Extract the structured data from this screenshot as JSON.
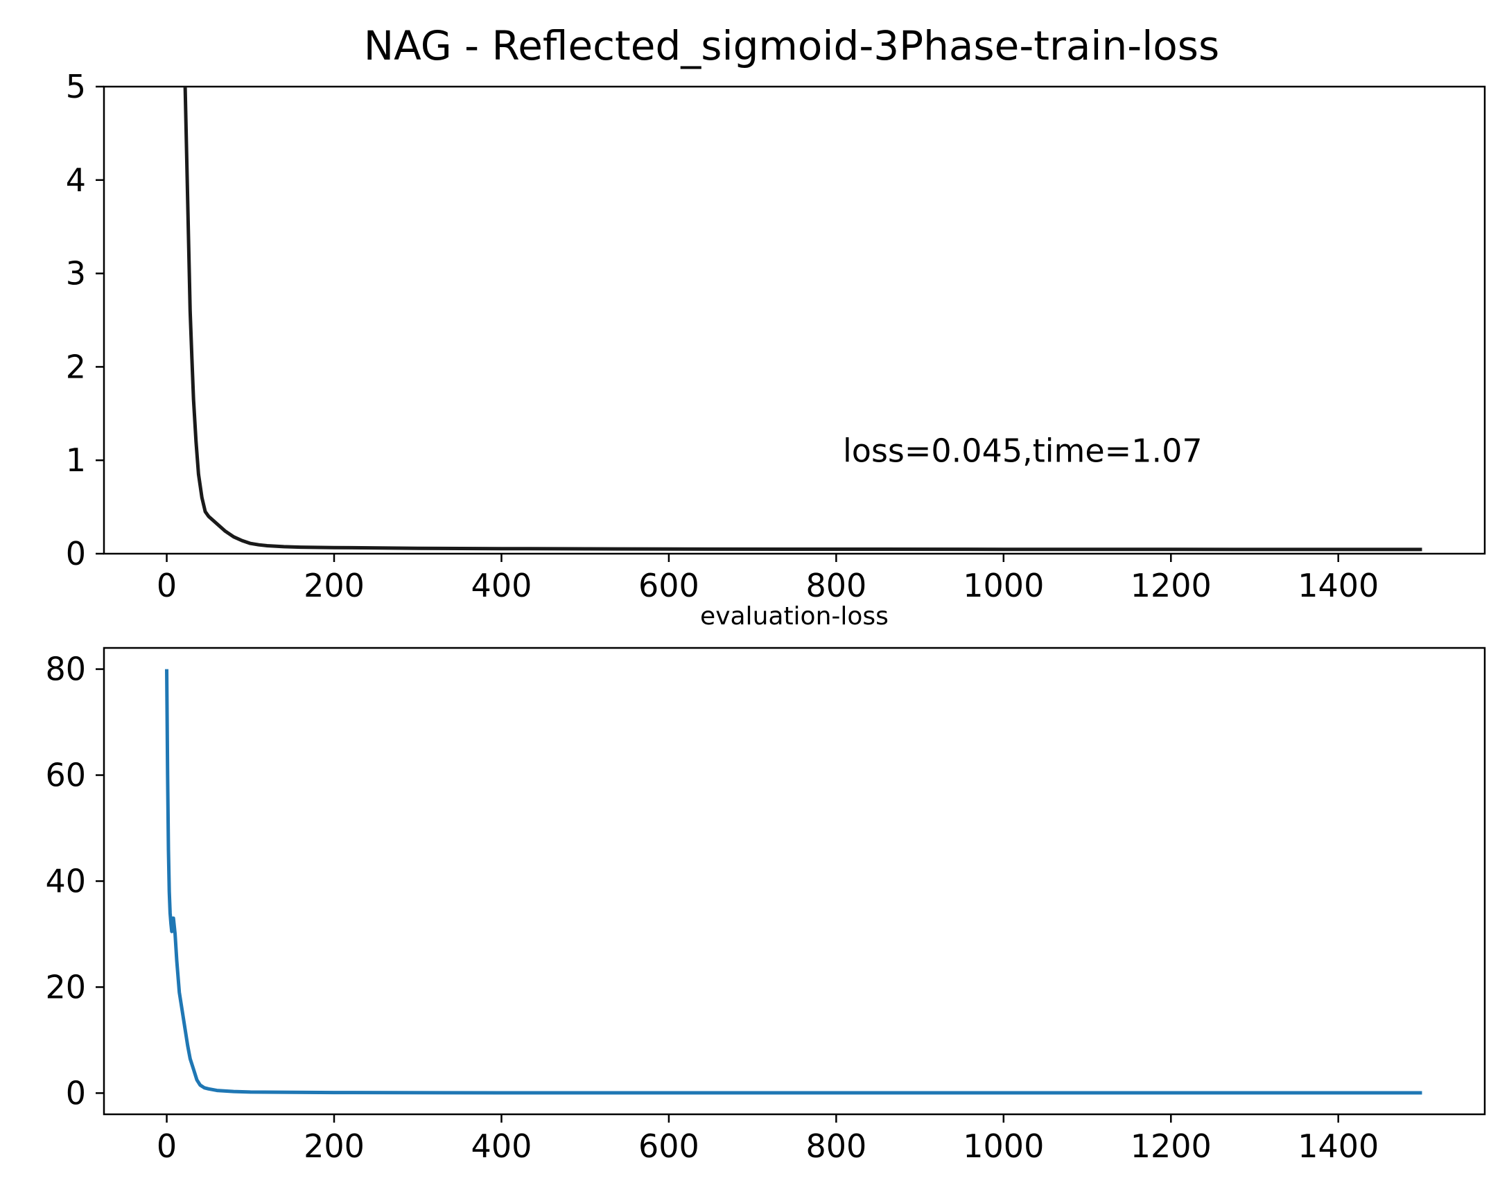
{
  "figure_title": "NAG - Reflected_sigmoid-3Phase-train-loss",
  "chart_data": [
    {
      "type": "line",
      "id": "train",
      "title": "NAG - Reflected_sigmoid-3Phase-train-loss",
      "xlabel": "",
      "ylabel": "",
      "xlim": [
        -75,
        1575
      ],
      "ylim": [
        0,
        5
      ],
      "xticks": [
        0,
        200,
        400,
        600,
        800,
        1000,
        1200,
        1400
      ],
      "yticks": [
        0,
        1,
        2,
        3,
        4,
        5
      ],
      "grid": false,
      "annotation": {
        "text": "loss=0.045,time=1.07",
        "x": 808,
        "y": 1.1
      },
      "series": [
        {
          "name": "train-loss",
          "color": "#1a1a1a",
          "x": [
            22,
            25,
            28,
            30,
            32,
            35,
            38,
            42,
            46,
            50,
            60,
            70,
            80,
            90,
            100,
            110,
            120,
            140,
            160,
            200,
            300,
            400,
            600,
            800,
            1000,
            1200,
            1400,
            1500
          ],
          "y": [
            5.0,
            3.8,
            2.6,
            2.1,
            1.65,
            1.2,
            0.85,
            0.6,
            0.45,
            0.4,
            0.32,
            0.24,
            0.18,
            0.14,
            0.11,
            0.095,
            0.085,
            0.075,
            0.07,
            0.065,
            0.058,
            0.054,
            0.05,
            0.048,
            0.047,
            0.046,
            0.045,
            0.045
          ]
        }
      ]
    },
    {
      "type": "line",
      "id": "eval",
      "title": "evaluation-loss",
      "xlabel": "",
      "ylabel": "",
      "xlim": [
        -75,
        1575
      ],
      "ylim": [
        -4,
        84
      ],
      "xticks": [
        0,
        200,
        400,
        600,
        800,
        1000,
        1200,
        1400
      ],
      "yticks": [
        0,
        20,
        40,
        60,
        80
      ],
      "grid": false,
      "series": [
        {
          "name": "evaluation-loss",
          "color": "#1f77b4",
          "x": [
            0,
            1,
            2,
            3,
            4,
            5,
            6,
            7,
            8,
            10,
            12,
            15,
            18,
            20,
            22,
            25,
            28,
            32,
            36,
            40,
            45,
            50,
            60,
            80,
            100,
            150,
            200,
            400,
            800,
            1200,
            1500
          ],
          "y": [
            80,
            60,
            46,
            38,
            34,
            32,
            30.5,
            33,
            33,
            30,
            25,
            19,
            16,
            14,
            12,
            9,
            6.5,
            4.5,
            2.5,
            1.5,
            1.0,
            0.8,
            0.5,
            0.3,
            0.2,
            0.15,
            0.1,
            0.05,
            0.05,
            0.05,
            0.05
          ]
        }
      ]
    }
  ]
}
